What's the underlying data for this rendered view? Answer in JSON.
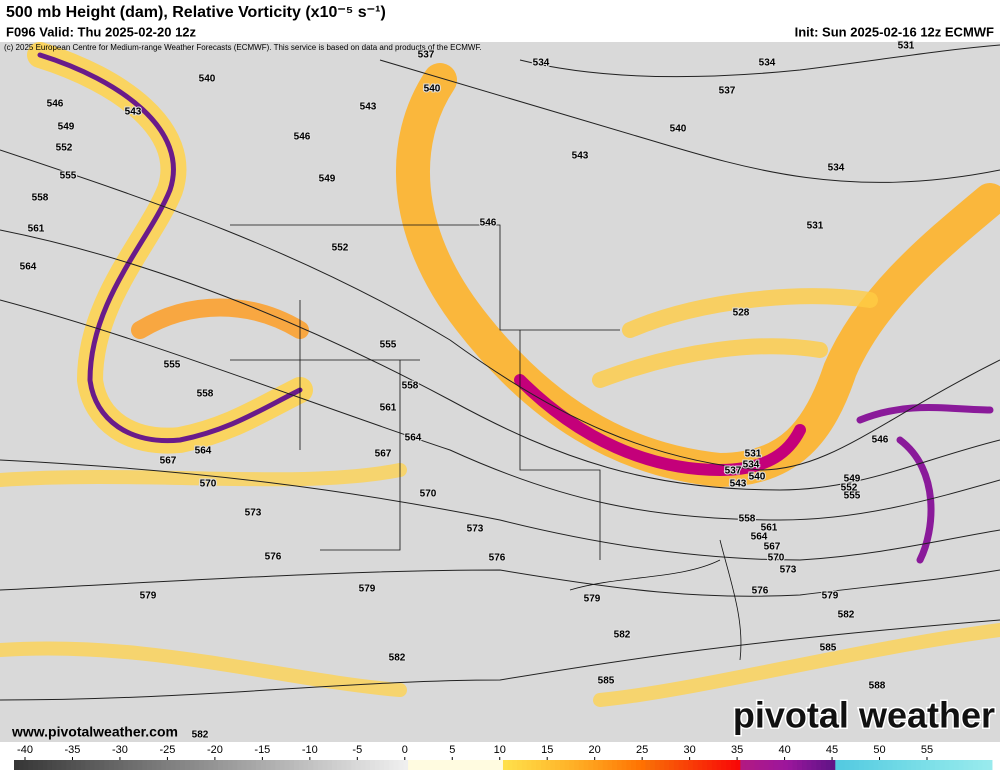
{
  "header": {
    "title": "500 mb Height (dam), Relative Vorticity (x10⁻⁵ s⁻¹)",
    "valid": "F096 Valid: Thu 2025-02-20 12z",
    "init": "Init: Sun 2025-02-16 12z ECMWF",
    "copyright": "(c) 2025 European Centre for Medium-range Weather Forecasts (ECMWF). This service is based on data and products of the ECMWF."
  },
  "contour_labels": [
    540,
    543,
    546,
    549,
    552,
    555,
    558,
    561,
    564,
    546,
    549,
    552,
    555,
    555,
    558,
    558,
    561,
    564,
    564,
    567,
    567,
    570,
    570,
    573,
    573,
    576,
    576,
    579,
    579,
    579,
    582,
    582,
    585,
    537,
    540,
    543,
    534,
    534,
    537,
    540,
    543,
    546,
    531,
    534,
    531,
    528,
    531,
    534,
    537,
    540,
    543,
    546,
    549,
    552,
    555,
    558,
    561,
    564,
    567,
    570,
    573,
    576,
    579,
    582,
    585,
    588,
    582
  ],
  "colorbar": {
    "ticks": [
      -40,
      -35,
      -30,
      -25,
      -20,
      -15,
      -10,
      -5,
      0,
      5,
      10,
      15,
      20,
      25,
      30,
      35,
      40,
      45,
      50,
      55
    ]
  },
  "footer": {
    "website": "www.pivotalweather.com",
    "logo": "pivotal weather"
  }
}
